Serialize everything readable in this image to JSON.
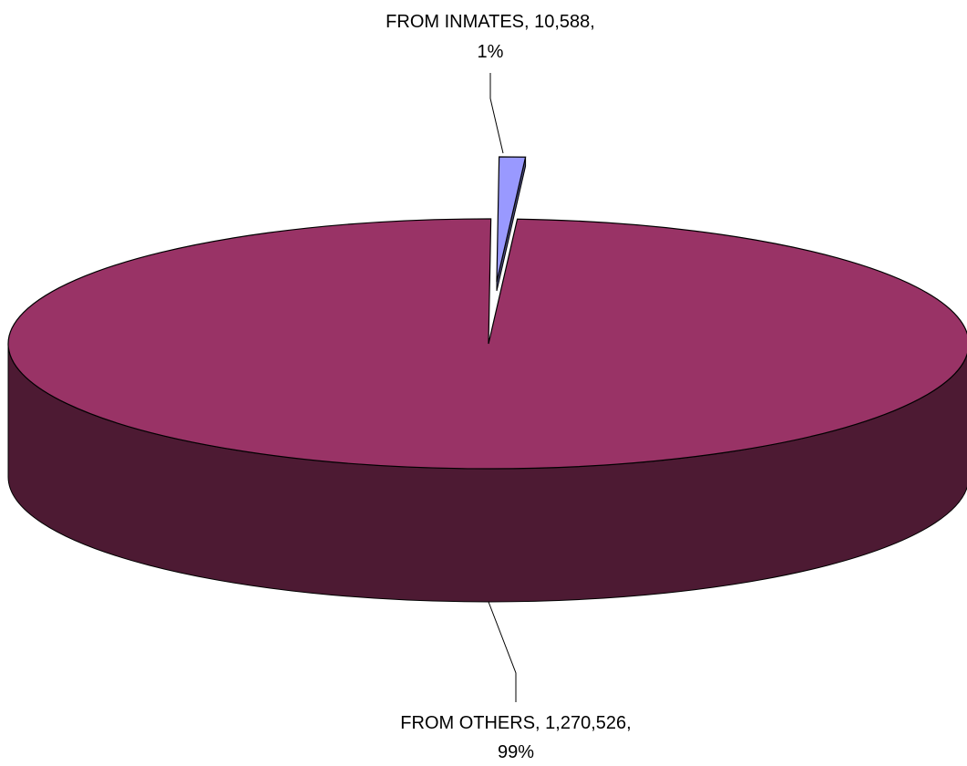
{
  "chart_data": {
    "type": "pie",
    "style": "3d-exploded",
    "categories": [
      "FROM INMATES",
      "FROM OTHERS"
    ],
    "values": [
      10588,
      1270526
    ],
    "percentages": [
      "1%",
      "99%"
    ],
    "slices": [
      {
        "name": "FROM INMATES",
        "value": 10588,
        "value_label": "10,588,",
        "percent_label": "1%",
        "label_line1": "FROM INMATES, 10,588,",
        "label_line2": "1%",
        "color": "#9999ff",
        "side_color": "#4c4c80",
        "exploded": true
      },
      {
        "name": "FROM OTHERS",
        "value": 1270526,
        "value_label": "1,270,526,",
        "percent_label": "99%",
        "label_line1": "FROM OTHERS, 1,270,526,",
        "label_line2": "99%",
        "color": "#993366",
        "side_color": "#4d1a33",
        "exploded": false
      }
    ],
    "title": "",
    "legend": "none",
    "edge_color": "#000000"
  }
}
